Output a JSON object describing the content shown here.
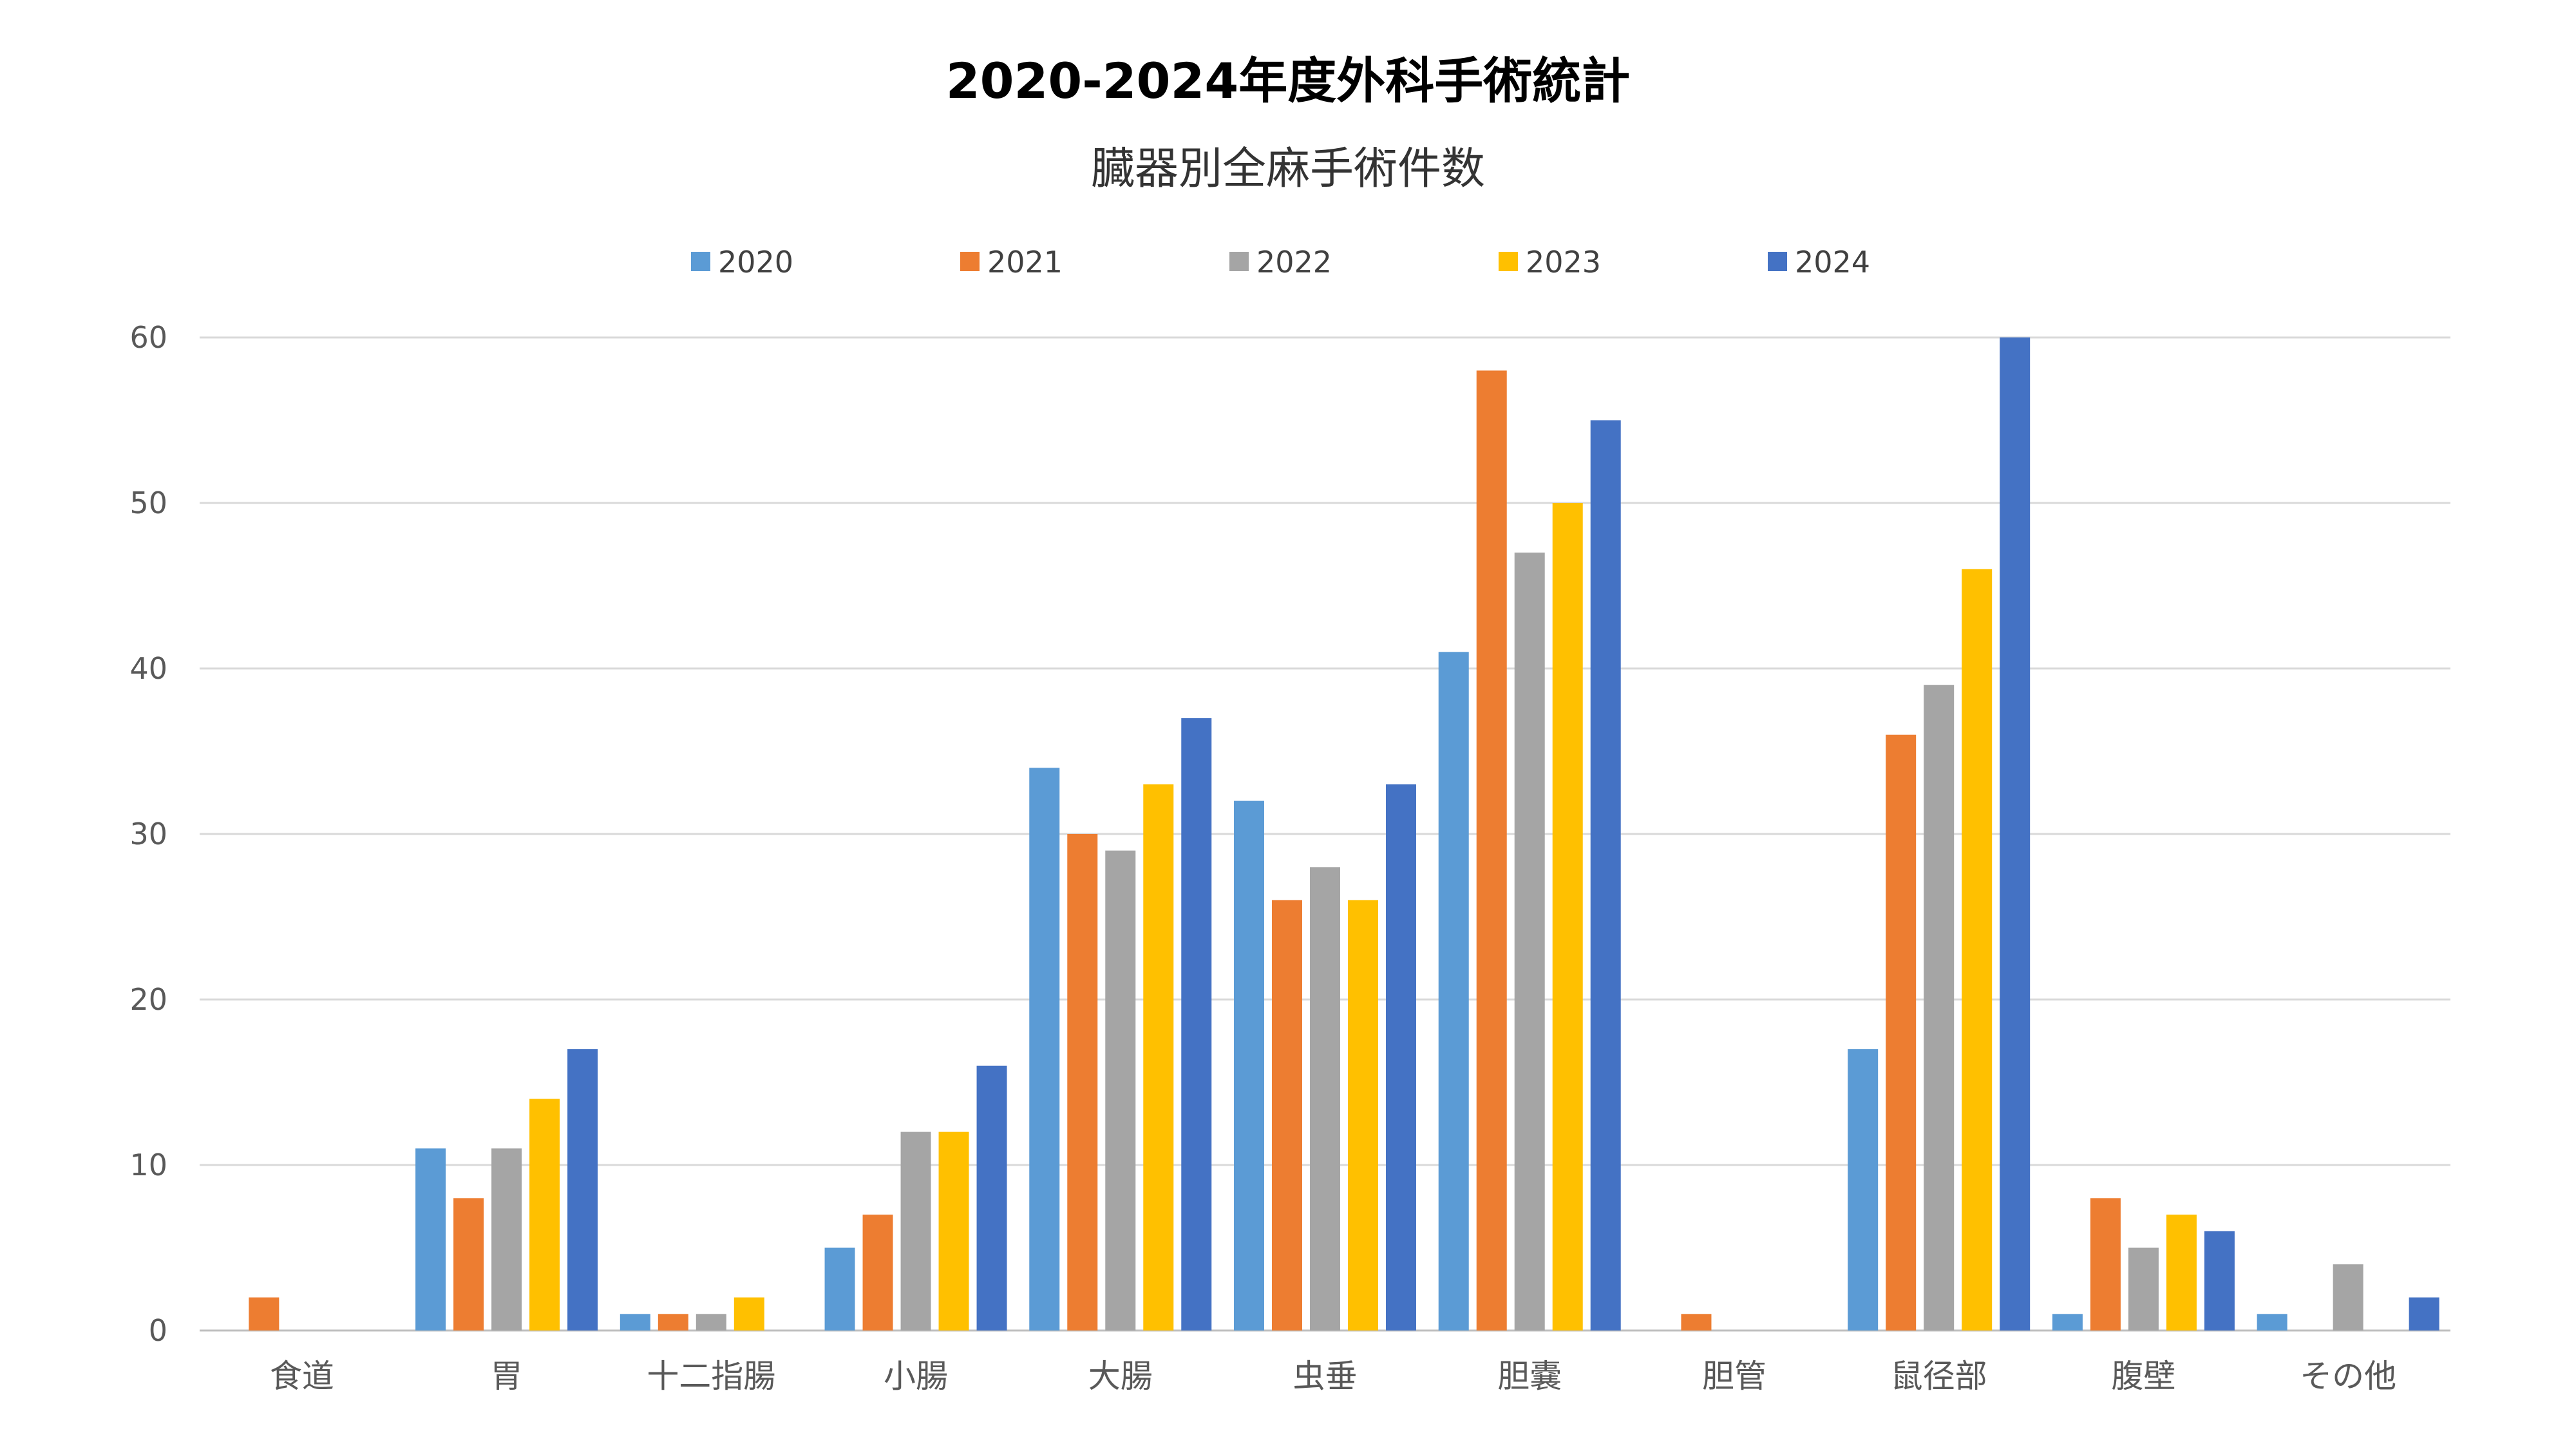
{
  "chart_data": {
    "type": "bar",
    "title": "2020-2024年度外科手術統計",
    "subtitle": "臓器別全麻手術件数",
    "xlabel": "",
    "ylabel": "",
    "ylim": [
      0,
      60
    ],
    "yticks": [
      0,
      10,
      20,
      30,
      40,
      50,
      60
    ],
    "grid": true,
    "legend_position": "top",
    "categories": [
      "食道",
      "胃",
      "十二指腸",
      "小腸",
      "大腸",
      "虫垂",
      "胆嚢",
      "胆管",
      "鼠径部",
      "腹壁",
      "その他"
    ],
    "series": [
      {
        "name": "2020",
        "color": "#5b9bd5",
        "values": [
          0,
          11,
          1,
          5,
          34,
          32,
          41,
          0,
          17,
          1,
          1
        ]
      },
      {
        "name": "2021",
        "color": "#ed7d31",
        "values": [
          2,
          8,
          1,
          7,
          30,
          26,
          58,
          1,
          36,
          8,
          0
        ]
      },
      {
        "name": "2022",
        "color": "#a5a5a5",
        "values": [
          0,
          11,
          1,
          12,
          29,
          28,
          47,
          0,
          39,
          5,
          4
        ]
      },
      {
        "name": "2023",
        "color": "#ffc000",
        "values": [
          0,
          14,
          2,
          12,
          33,
          26,
          50,
          0,
          46,
          7,
          0
        ]
      },
      {
        "name": "2024",
        "color": "#4472c4",
        "values": [
          0,
          17,
          0,
          16,
          37,
          33,
          55,
          0,
          60,
          6,
          2
        ]
      }
    ]
  }
}
